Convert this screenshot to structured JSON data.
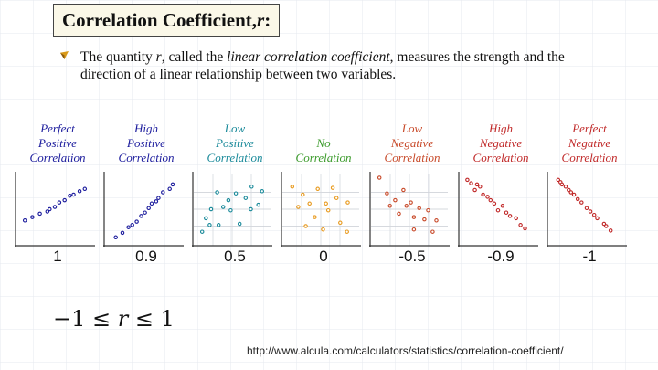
{
  "title": {
    "prefix": "Correlation Coefficient, ",
    "variable": "r",
    "suffix": " :"
  },
  "description": {
    "t1": "The quantity ",
    "r": "r",
    "t2": ", called the ",
    "term": "linear correlation coefficient",
    "t3": ", measures the strength and the direction of a linear relationship between two variables."
  },
  "formula": {
    "left": "−1 ≤ ",
    "var": "r",
    "right": " ≤ 1"
  },
  "source_url": "http://www.alcula.com/calculators/statistics/correlation-coefficient/",
  "chart_data": [
    {
      "type": "scatter",
      "label": [
        "Perfect",
        "Positive",
        "Correlation"
      ],
      "r_label": "1",
      "color": "#1a1a9c",
      "grid": false,
      "points": [
        [
          1,
          20
        ],
        [
          2,
          23
        ],
        [
          3,
          26
        ],
        [
          4,
          28
        ],
        [
          4.3,
          30
        ],
        [
          5,
          32
        ],
        [
          5.6,
          36
        ],
        [
          6.3,
          38
        ],
        [
          7,
          42
        ],
        [
          7.5,
          43
        ],
        [
          8.3,
          46
        ],
        [
          9,
          48
        ]
      ]
    },
    {
      "type": "scatter",
      "label": [
        "High",
        "Positive",
        "Correlation"
      ],
      "r_label": "0.9",
      "color": "#1a1a9c",
      "grid": false,
      "points": [
        [
          1.3,
          5
        ],
        [
          2.2,
          9
        ],
        [
          3,
          14
        ],
        [
          3.5,
          16
        ],
        [
          4.1,
          19
        ],
        [
          4.7,
          24
        ],
        [
          5.2,
          27
        ],
        [
          5.7,
          31
        ],
        [
          6.1,
          35
        ],
        [
          6.7,
          37
        ],
        [
          7,
          40
        ],
        [
          7.6,
          45
        ],
        [
          8.5,
          48
        ],
        [
          8.9,
          52
        ]
      ]
    },
    {
      "type": "scatter",
      "label": [
        "Low",
        "Positive",
        "Correlation"
      ],
      "r_label": "0.5",
      "color": "#1a8a9a",
      "grid": true,
      "points": [
        [
          1,
          10
        ],
        [
          1.5,
          22
        ],
        [
          2,
          16
        ],
        [
          2.2,
          30
        ],
        [
          3,
          45
        ],
        [
          3.2,
          16
        ],
        [
          3.8,
          32
        ],
        [
          4.5,
          38
        ],
        [
          4.8,
          29
        ],
        [
          5.5,
          44
        ],
        [
          6,
          17
        ],
        [
          6.8,
          40
        ],
        [
          7.5,
          30
        ],
        [
          7.6,
          50
        ],
        [
          8.5,
          34
        ],
        [
          9,
          46
        ]
      ]
    },
    {
      "type": "scatter",
      "label": [
        "No",
        "Correlation"
      ],
      "r_label": "0",
      "color": "#e89a1e",
      "grid": true,
      "points": [
        [
          1.2,
          50
        ],
        [
          2,
          32
        ],
        [
          2.6,
          43
        ],
        [
          3,
          15
        ],
        [
          3.5,
          35
        ],
        [
          4.2,
          23
        ],
        [
          4.6,
          48
        ],
        [
          5.3,
          12
        ],
        [
          5.7,
          35
        ],
        [
          6,
          29
        ],
        [
          6.6,
          49
        ],
        [
          7.1,
          40
        ],
        [
          7.6,
          18
        ],
        [
          8.5,
          10
        ],
        [
          8.6,
          36
        ]
      ]
    },
    {
      "type": "scatter",
      "label": [
        "Low",
        "Negative",
        "Correlation"
      ],
      "r_label": "-0.5",
      "color": "#c84a2a",
      "grid": true,
      "points": [
        [
          1,
          58
        ],
        [
          2,
          44
        ],
        [
          2.4,
          33
        ],
        [
          3.1,
          38
        ],
        [
          3.6,
          26
        ],
        [
          4.2,
          47
        ],
        [
          4.6,
          33
        ],
        [
          5.2,
          36
        ],
        [
          5.6,
          23
        ],
        [
          5.6,
          12
        ],
        [
          6.3,
          31
        ],
        [
          7,
          21
        ],
        [
          7.5,
          29
        ],
        [
          8.1,
          10
        ],
        [
          8.6,
          20
        ]
      ]
    },
    {
      "type": "scatter",
      "label": [
        "High",
        "Negative",
        "Correlation"
      ],
      "r_label": "-0.9",
      "color": "#c02828",
      "grid": false,
      "points": [
        [
          0.9,
          56
        ],
        [
          1.4,
          53
        ],
        [
          1.9,
          47
        ],
        [
          2.2,
          52
        ],
        [
          2.6,
          50
        ],
        [
          3,
          43
        ],
        [
          3.6,
          41
        ],
        [
          4,
          38
        ],
        [
          4.5,
          35
        ],
        [
          5,
          29
        ],
        [
          5.6,
          33
        ],
        [
          6.1,
          27
        ],
        [
          6.6,
          24
        ],
        [
          7.4,
          22
        ],
        [
          8,
          16
        ],
        [
          8.6,
          13
        ]
      ]
    },
    {
      "type": "scatter",
      "label": [
        "Perfect",
        "Negative",
        "Correlation"
      ],
      "r_label": "-1",
      "color": "#c02828",
      "grid": false,
      "points": [
        [
          1.2,
          56
        ],
        [
          1.5,
          54
        ],
        [
          1.7,
          52
        ],
        [
          2.2,
          50
        ],
        [
          2.6,
          47
        ],
        [
          2.9,
          45
        ],
        [
          3.3,
          43
        ],
        [
          3.8,
          39
        ],
        [
          4.3,
          36
        ],
        [
          5,
          31
        ],
        [
          5.5,
          28
        ],
        [
          6,
          25
        ],
        [
          6.4,
          22
        ],
        [
          7.3,
          17
        ],
        [
          7.6,
          15
        ],
        [
          8.2,
          11
        ]
      ]
    }
  ]
}
